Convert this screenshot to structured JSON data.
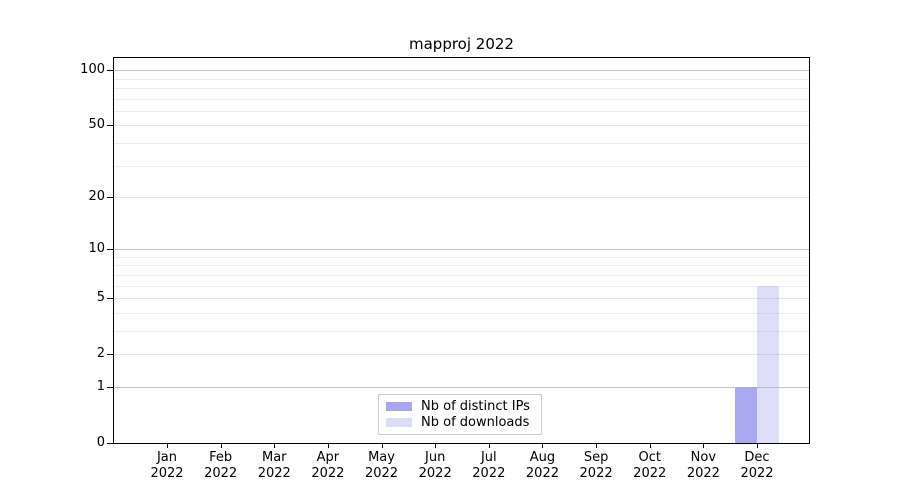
{
  "chart_data": {
    "type": "bar",
    "title": "mapproj 2022",
    "categories": [
      "Jan 2022",
      "Feb 2022",
      "Mar 2022",
      "Apr 2022",
      "May 2022",
      "Jun 2022",
      "Jul 2022",
      "Aug 2022",
      "Sep 2022",
      "Oct 2022",
      "Nov 2022",
      "Dec 2022"
    ],
    "series": [
      {
        "name": "Nb of distinct IPs",
        "values": [
          0,
          0,
          0,
          0,
          0,
          0,
          0,
          0,
          0,
          0,
          0,
          1
        ],
        "color": "#a8a8f0",
        "opacity": 1
      },
      {
        "name": "Nb of downloads",
        "values": [
          0,
          0,
          0,
          0,
          0,
          0,
          0,
          0,
          0,
          0,
          0,
          6
        ],
        "color": "#a8a8f0",
        "opacity": 0.38
      }
    ],
    "xlabel": "",
    "ylabel": "",
    "yscale": "log1p",
    "ylim": [
      0,
      118
    ],
    "yticks": [
      0,
      1,
      2,
      5,
      10,
      20,
      50,
      100
    ],
    "major_gridlines": [
      1,
      10,
      100
    ],
    "mid_gridlines": [
      2,
      5,
      20,
      50
    ],
    "minor_gridlines": [
      3,
      4,
      6,
      7,
      8,
      9,
      30,
      40,
      60,
      70,
      80,
      90
    ],
    "grid": true,
    "legend_position": "lower center",
    "colors": {
      "bar_distinct_ips": "#a8a8f0",
      "bar_downloads_effective": "#dbdbf9",
      "major_grid": "#c3c3c3",
      "minor_grid": "#ededed",
      "spine": "#000000",
      "legend_border": "#cccccc"
    }
  }
}
